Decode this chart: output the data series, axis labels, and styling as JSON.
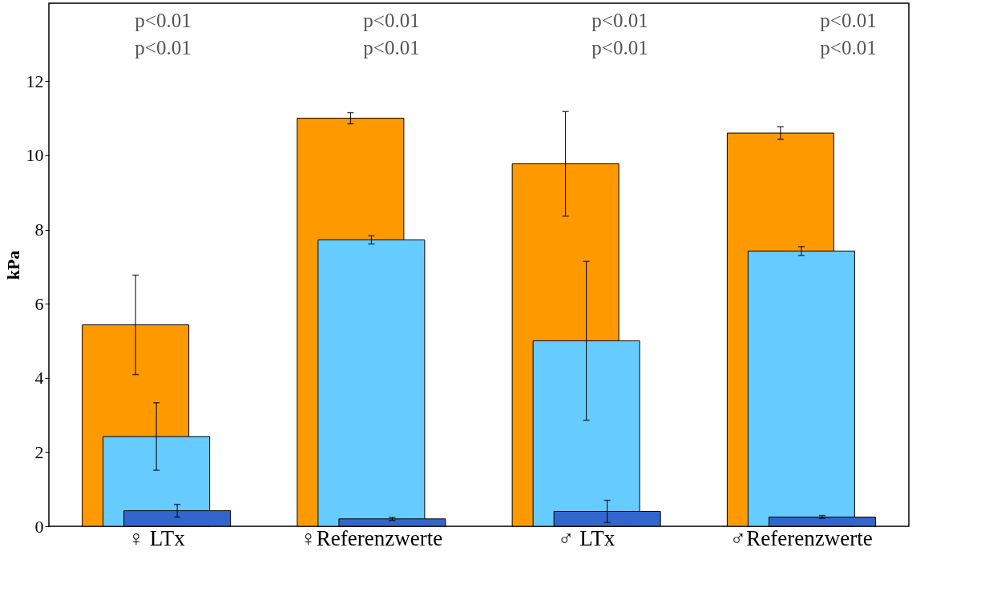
{
  "chart_data": {
    "type": "bar",
    "ylabel": "kPa",
    "categories": [
      "♀ LTx",
      "♀Referenzwerte",
      "♂ LTx",
      "♂Referenzwerte"
    ],
    "series": [
      {
        "color": "#ff9900",
        "values": [
          5.43,
          11.0,
          9.77,
          10.6
        ],
        "errors": [
          1.34,
          0.15,
          1.41,
          0.17
        ]
      },
      {
        "color": "#66ccff",
        "values": [
          2.42,
          7.72,
          5.0,
          7.42
        ],
        "errors": [
          0.91,
          0.11,
          2.14,
          0.12
        ]
      },
      {
        "color": "#3366cc",
        "values": [
          0.42,
          0.2,
          0.4,
          0.25
        ],
        "errors": [
          0.17,
          0.04,
          0.3,
          0.04
        ]
      }
    ],
    "ylim": [
      0,
      14.1
    ],
    "yticks": [
      0,
      2,
      4,
      6,
      8,
      10,
      12
    ],
    "annotations": [
      "p<0.01",
      "p<0.01",
      "p<0.01",
      "p<0.01",
      "p<0.01",
      "p<0.01",
      "p<0.01",
      "p<0.01"
    ]
  }
}
